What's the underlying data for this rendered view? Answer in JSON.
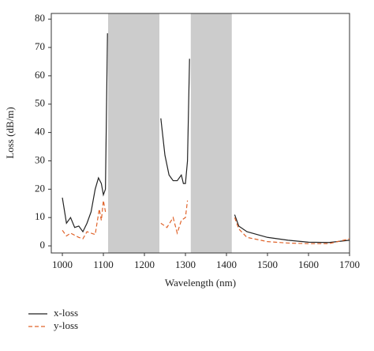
{
  "chart_data": {
    "type": "line",
    "xlabel": "Wavelength (nm)",
    "ylabel": "Loss (dB/m)",
    "xlim": [
      973,
      1700
    ],
    "ylim": [
      -2.5,
      82
    ],
    "xticks": [
      1000,
      1100,
      1200,
      1300,
      1400,
      1500,
      1600,
      1700
    ],
    "yticks": [
      0,
      10,
      20,
      30,
      40,
      50,
      60,
      70,
      80
    ],
    "shaded_regions": [
      [
        1111.5,
        1236.5
      ],
      [
        1313,
        1413
      ]
    ],
    "shade_color": "#cccccc",
    "legend": "bottom-left",
    "series": [
      {
        "name": "x-loss",
        "color": "#222222",
        "dash": false,
        "x": [
          1000,
          1010,
          1020,
          1030,
          1040,
          1050,
          1060,
          1070,
          1080,
          1088,
          1095,
          1100,
          1105,
          1110,
          null,
          1240,
          1250,
          1260,
          1270,
          1280,
          1290,
          1295,
          1300,
          1305,
          1310,
          null,
          1420,
          1430,
          1450,
          1500,
          1550,
          1600,
          1650,
          1700
        ],
        "values": [
          17,
          8,
          10,
          6.5,
          7,
          5,
          8,
          12,
          20,
          24,
          22,
          18,
          20,
          75,
          null,
          45,
          32,
          25,
          23,
          23,
          25,
          22,
          22,
          30,
          66,
          null,
          11,
          7,
          5,
          3,
          2,
          1.3,
          1.2,
          2
        ]
      },
      {
        "name": "y-loss",
        "color": "#e0632a",
        "dash": true,
        "x": [
          1000,
          1010,
          1020,
          1040,
          1050,
          1060,
          1070,
          1080,
          1090,
          1095,
          1100,
          1105,
          null,
          1240,
          1255,
          1270,
          1280,
          1290,
          1300,
          1305,
          null,
          1420,
          1430,
          1450,
          1500,
          1550,
          1600,
          1650,
          1700
        ],
        "values": [
          5.5,
          3.5,
          4.5,
          3,
          2.5,
          5,
          4.5,
          4,
          13,
          9,
          16,
          12,
          null,
          8,
          6.5,
          10,
          4.5,
          9,
          10,
          16,
          null,
          10,
          6,
          3,
          1.5,
          1,
          0.8,
          0.8,
          2.5
        ]
      }
    ]
  }
}
